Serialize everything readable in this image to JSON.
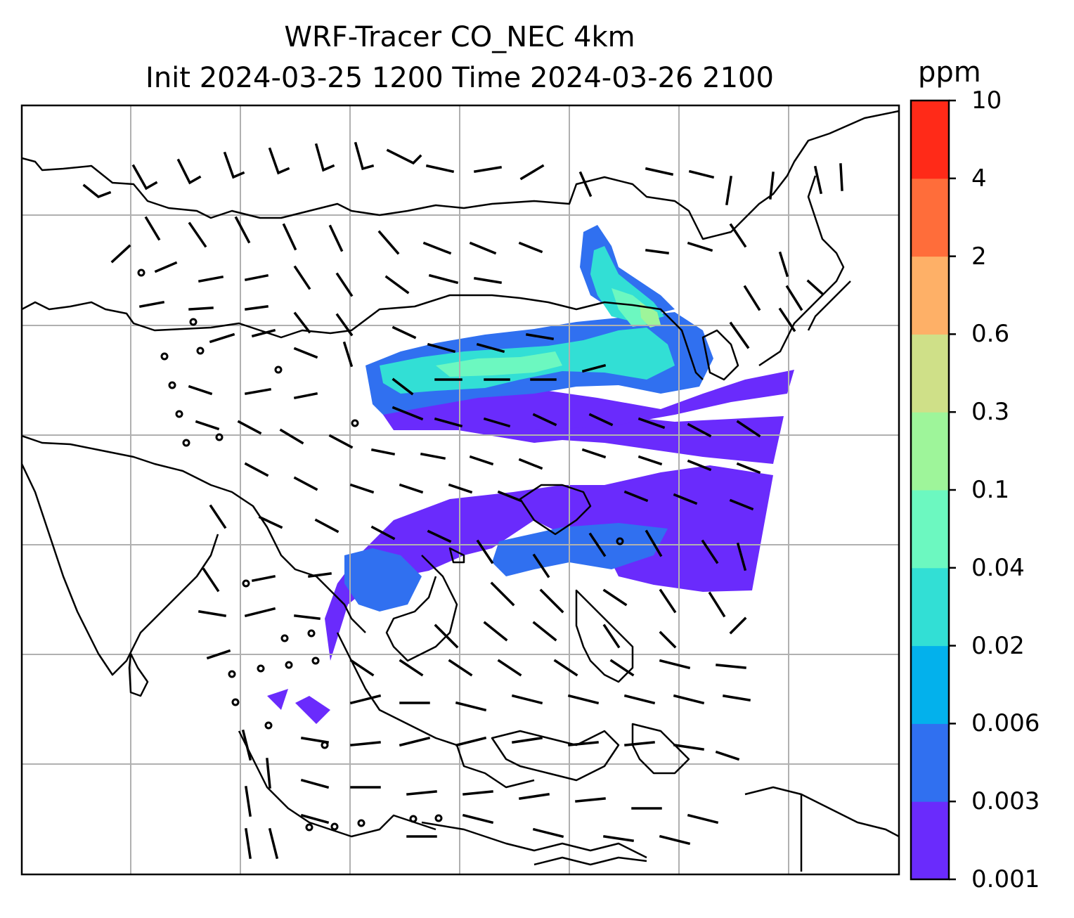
{
  "title": {
    "line1": "WRF-Tracer CO_NEC 4km",
    "line2": "Init 2024-03-25 1200 Time 2024-03-26 2100"
  },
  "colorbar": {
    "unit": "ppm",
    "levels": [
      "0.001",
      "0.003",
      "0.006",
      "0.02",
      "0.04",
      "0.1",
      "0.3",
      "0.6",
      "2",
      "4",
      "10"
    ],
    "colors": [
      "#6a2bfc",
      "#3070f0",
      "#03b1ec",
      "#32dfd5",
      "#6cf8c0",
      "#9ef59a",
      "#cfe088",
      "#feb067",
      "#ff6d3a",
      "#ff2a18"
    ]
  },
  "map": {
    "gridlines": true,
    "barbs": "wind barbs",
    "calm": "calm winds"
  }
}
